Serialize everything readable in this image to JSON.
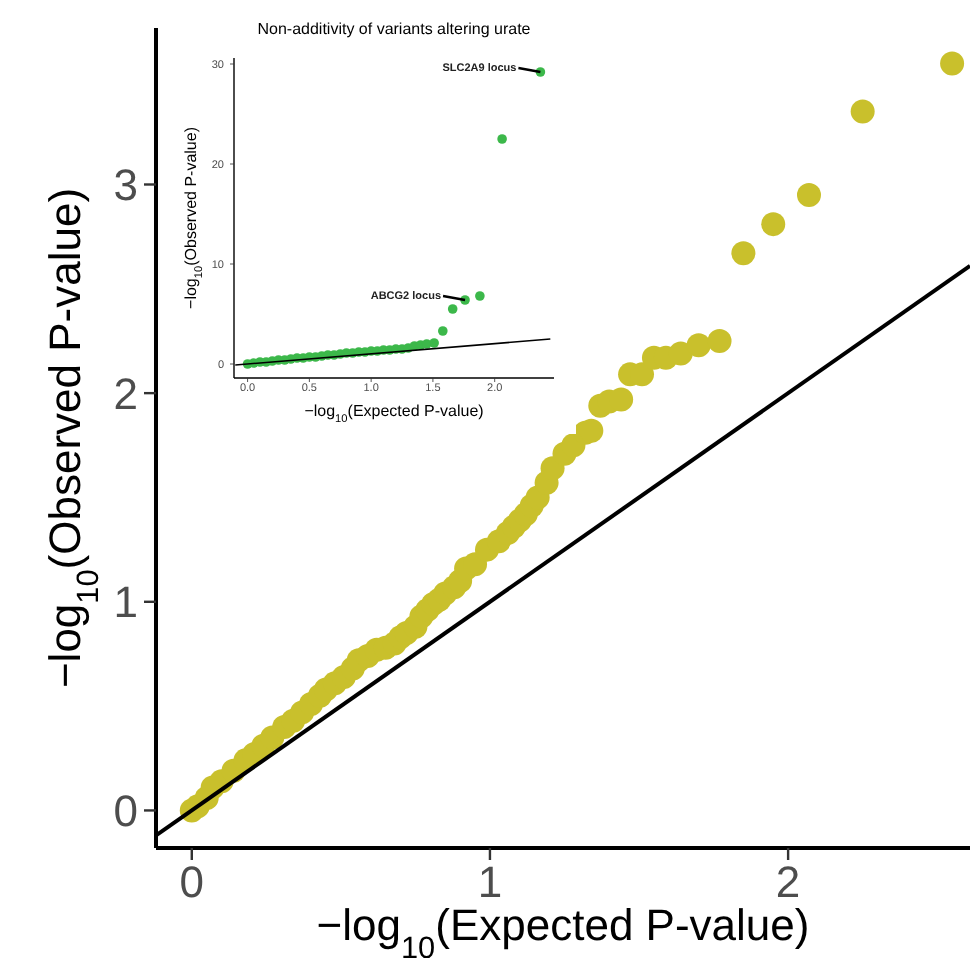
{
  "chart_data": [
    {
      "type": "scatter",
      "xlabel": "−log$_{10}$(Expected P-value)",
      "ylabel": "−log$_{10}$(Observed P-value)",
      "xlim": [
        -0.12,
        2.61
      ],
      "ylim": [
        -0.18,
        3.75
      ],
      "xticks": [
        0,
        1,
        2
      ],
      "yticks": [
        0,
        1,
        2,
        3
      ],
      "grid": false,
      "series": [
        {
          "marker": "circle",
          "color": "#c9c02c",
          "x": [
            0,
            0.02,
            0.05,
            0.07,
            0.1,
            0.14,
            0.18,
            0.21,
            0.24,
            0.27,
            0.31,
            0.34,
            0.37,
            0.4,
            0.43,
            0.45,
            0.48,
            0.51,
            0.54,
            0.56,
            0.59,
            0.62,
            0.65,
            0.68,
            0.7,
            0.72,
            0.75,
            0.77,
            0.79,
            0.81,
            0.83,
            0.85,
            0.88,
            0.9,
            0.92,
            0.95,
            0.99,
            1.03,
            1.06,
            1.08,
            1.1,
            1.12,
            1.14,
            1.16,
            1.19,
            1.21,
            1.25,
            1.28,
            1.32,
            1.34,
            1.37,
            1.4,
            1.44,
            1.47,
            1.51,
            1.55,
            1.59,
            1.64,
            1.7,
            1.77,
            1.85,
            1.95,
            2.07,
            2.25,
            2.55
          ],
          "values": [
            0,
            0.02,
            0.06,
            0.11,
            0.14,
            0.19,
            0.24,
            0.27,
            0.31,
            0.35,
            0.4,
            0.43,
            0.47,
            0.51,
            0.55,
            0.58,
            0.61,
            0.64,
            0.68,
            0.72,
            0.74,
            0.77,
            0.78,
            0.8,
            0.83,
            0.85,
            0.88,
            0.93,
            0.96,
            0.99,
            1.01,
            1.04,
            1.07,
            1.1,
            1.16,
            1.18,
            1.25,
            1.29,
            1.33,
            1.36,
            1.39,
            1.42,
            1.46,
            1.5,
            1.57,
            1.64,
            1.71,
            1.75,
            1.81,
            1.82,
            1.94,
            1.96,
            1.97,
            2.09,
            2.09,
            2.17,
            2.17,
            2.19,
            2.23,
            2.25,
            2.67,
            2.81,
            2.95,
            3.35,
            3.58
          ]
        },
        {
          "type": "line",
          "color": "#000000",
          "x": [
            -0.12,
            2.61
          ],
          "values": [
            -0.12,
            2.61
          ]
        }
      ]
    },
    {
      "type": "scatter",
      "title": "Non-additivity of variants altering urate",
      "xlabel": "−log$_{10}$(Expected P-value)",
      "ylabel": "−log$_{10}$(Observed P-value)",
      "xlim": [
        -0.11,
        2.48
      ],
      "ylim": [
        -1.4,
        30.6
      ],
      "xticks": [
        {
          "value": 0,
          "label": "0.0"
        },
        {
          "value": 0.5,
          "label": "0.5"
        },
        {
          "value": 1,
          "label": "1.0"
        },
        {
          "value": 1.5,
          "label": "1.5"
        },
        {
          "value": 2,
          "label": "2.0"
        }
      ],
      "yticks": [
        0,
        10,
        20,
        30
      ],
      "grid": false,
      "annotations": [
        {
          "text": "SLC2A9 locus",
          "x": 2.37,
          "y": 29.2
        },
        {
          "text": "ABCG2 locus",
          "x": 1.76,
          "y": 6.4
        }
      ],
      "series": [
        {
          "marker": "circle",
          "color": "#3cb84a",
          "x": [
            0,
            0.05,
            0.1,
            0.15,
            0.2,
            0.25,
            0.3,
            0.35,
            0.4,
            0.45,
            0.5,
            0.55,
            0.6,
            0.65,
            0.7,
            0.75,
            0.8,
            0.85,
            0.9,
            0.95,
            1.0,
            1.05,
            1.1,
            1.15,
            1.2,
            1.25,
            1.3,
            1.35,
            1.4,
            1.45,
            1.51,
            1.58,
            1.66,
            1.76,
            1.88,
            2.06,
            2.37
          ],
          "values": [
            0,
            0.1,
            0.2,
            0.2,
            0.3,
            0.4,
            0.4,
            0.5,
            0.6,
            0.6,
            0.7,
            0.7,
            0.8,
            0.9,
            0.9,
            1.0,
            1.1,
            1.1,
            1.2,
            1.2,
            1.3,
            1.3,
            1.4,
            1.4,
            1.5,
            1.5,
            1.6,
            1.8,
            1.9,
            2.0,
            2.1,
            3.3,
            5.5,
            6.4,
            6.8,
            22.5,
            29.2
          ]
        },
        {
          "type": "line",
          "color": "#000000",
          "x": [
            -0.1,
            2.45
          ],
          "values": [
            -0.1,
            2.5
          ]
        }
      ]
    }
  ]
}
